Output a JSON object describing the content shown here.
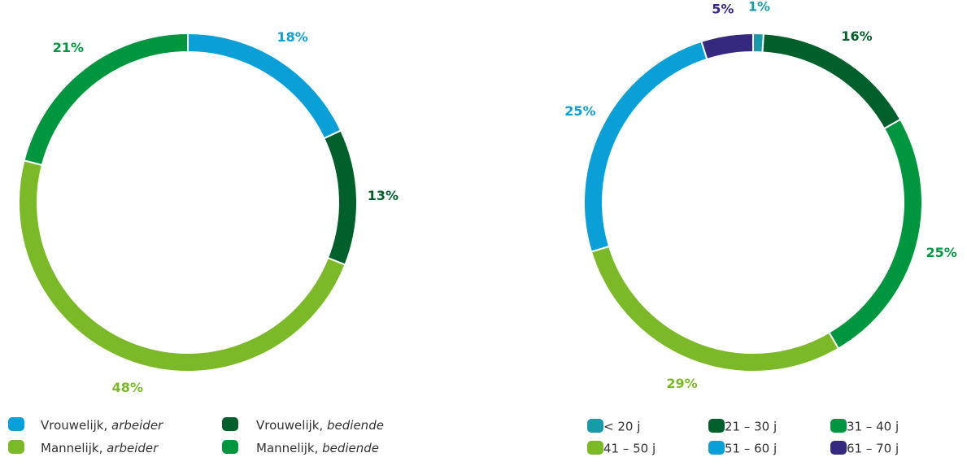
{
  "chart_data": [
    {
      "type": "pie",
      "categories": [
        "Vrouwelijk, arbeider",
        "Vrouwelijk, bediende",
        "Mannelijk, arbeider",
        "Mannelijk, bediende"
      ],
      "values": [
        18,
        13,
        48,
        21
      ],
      "value_labels": [
        "18%",
        "13%",
        "48%",
        "21%"
      ],
      "colors": [
        "#0a9fd6",
        "#005f2a",
        "#7bb928",
        "#00963f"
      ],
      "legend_order": [
        0,
        1,
        2,
        3
      ]
    },
    {
      "type": "pie",
      "categories": [
        "< 20 j",
        "21 – 30 j",
        "31 – 40 j",
        "41 – 50 j",
        "51 – 60 j",
        "61 – 70 j"
      ],
      "values": [
        1,
        16,
        25,
        29,
        25,
        5
      ],
      "value_labels": [
        "1%",
        "16%",
        "25%",
        "29%",
        "25%",
        "5%"
      ],
      "colors": [
        "#1a9aa8",
        "#005f2a",
        "#00963f",
        "#7bb928",
        "#0a9fd6",
        "#35287f"
      ],
      "legend_order": [
        0,
        1,
        2,
        3,
        4,
        5
      ]
    }
  ]
}
